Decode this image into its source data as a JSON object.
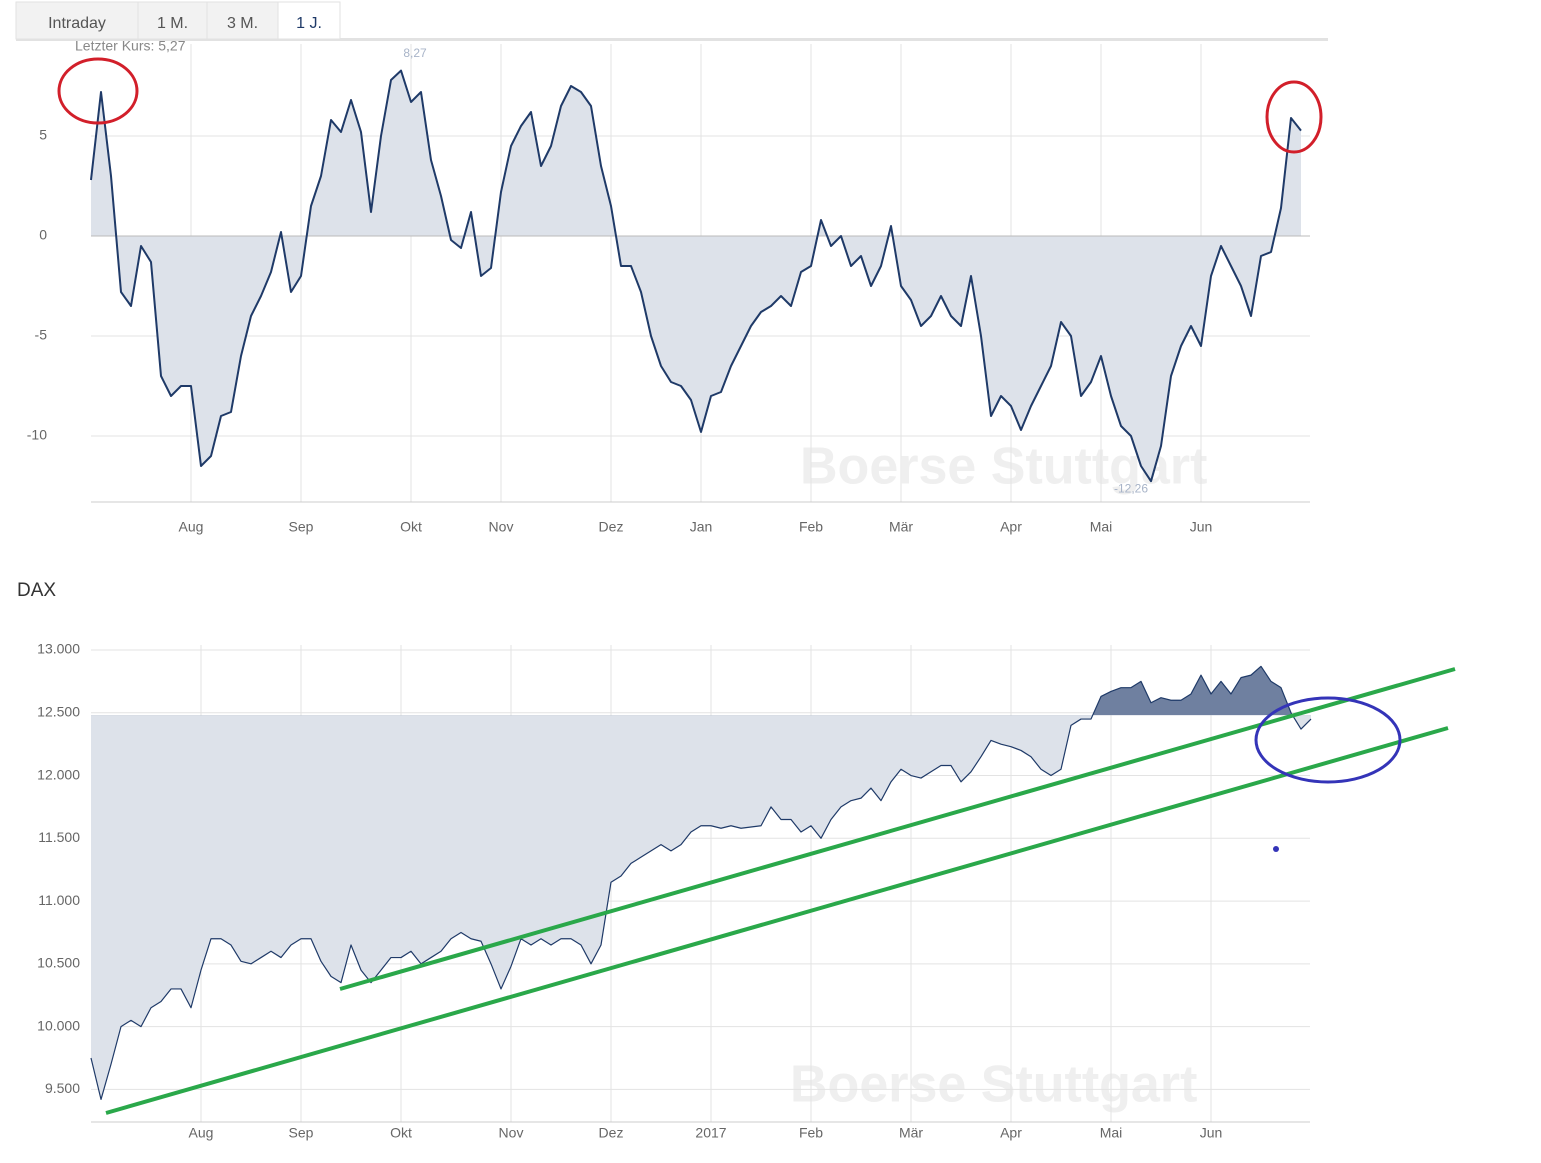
{
  "tabs": [
    "Intraday",
    "1 M.",
    "3 M.",
    "1 J."
  ],
  "active_tab": 3,
  "chart_data": [
    {
      "type": "area",
      "subtitle": "Letzter Kurs: 5,27",
      "watermark": "Boerse Stuttgart",
      "annotations": [
        "8,27",
        "-12,26"
      ],
      "categories": [
        null,
        null,
        null,
        null,
        null,
        null,
        null,
        null,
        null,
        null,
        "Aug",
        null,
        null,
        null,
        null,
        null,
        null,
        null,
        null,
        null,
        null,
        "Sep",
        null,
        null,
        null,
        null,
        null,
        null,
        null,
        null,
        null,
        null,
        "Okt",
        null,
        null,
        null,
        null,
        null,
        null,
        null,
        null,
        "Nov",
        null,
        null,
        null,
        null,
        null,
        null,
        null,
        null,
        null,
        null,
        "Dez",
        null,
        null,
        null,
        null,
        null,
        null,
        null,
        null,
        "Jan",
        null,
        null,
        null,
        null,
        null,
        null,
        null,
        null,
        null,
        null,
        "Feb",
        null,
        null,
        null,
        null,
        null,
        null,
        null,
        null,
        "Mär",
        null,
        null,
        null,
        null,
        null,
        null,
        null,
        null,
        null,
        null,
        "Apr",
        null,
        null,
        null,
        null,
        null,
        null,
        null,
        null,
        "Mai",
        null,
        null,
        null,
        null,
        null,
        null,
        null,
        null,
        null,
        "Jun",
        null,
        null,
        null,
        null,
        null,
        null,
        null,
        null,
        null,
        null
      ],
      "values": [
        2.8,
        7.2,
        3,
        -2.8,
        -3.5,
        -0.5,
        -1.3,
        -7,
        -8,
        -7.5,
        -7.5,
        -11.5,
        -11,
        -9,
        -8.8,
        -6,
        -4,
        -3,
        -1.8,
        0.2,
        -2.8,
        -2,
        1.5,
        3,
        5.8,
        5.2,
        6.8,
        5.2,
        1.2,
        5,
        7.8,
        8.27,
        6.7,
        7.2,
        3.8,
        2,
        -0.2,
        -0.6,
        1.2,
        -2,
        -1.6,
        2.2,
        4.5,
        5.5,
        6.2,
        3.5,
        4.5,
        6.5,
        7.5,
        7.2,
        6.5,
        3.5,
        1.5,
        -1.5,
        -1.5,
        -2.8,
        -5,
        -6.5,
        -7.3,
        -7.5,
        -8.2,
        -9.8,
        -8,
        -7.8,
        -6.5,
        -5.5,
        -4.5,
        -3.8,
        -3.5,
        -3,
        -3.5,
        -1.8,
        -1.5,
        0.8,
        -0.5,
        0,
        -1.5,
        -1,
        -2.5,
        -1.5,
        0.5,
        -2.5,
        -3.2,
        -4.5,
        -4,
        -3,
        -4,
        -4.5,
        -2,
        -5,
        -9,
        -8,
        -8.5,
        -9.7,
        -8.5,
        -7.5,
        -6.5,
        -4.3,
        -5,
        -8,
        -7.3,
        -6,
        -8,
        -9.5,
        -10,
        -11.5,
        -12.26,
        -10.5,
        -7,
        -5.5,
        -4.5,
        -5.5,
        -2,
        -0.5,
        -1.5,
        -2.5,
        -4,
        -1,
        -0.8,
        1.4,
        5.9,
        5.27
      ],
      "color": "#1f3a68",
      "fill": "#dde2ea",
      "baseline": 0,
      "ylim": [
        -13.3,
        9.6
      ],
      "yticks": [
        5,
        0,
        -5,
        -10
      ],
      "grid": true
    },
    {
      "type": "area",
      "title": "DAX",
      "watermark": "Boerse Stuttgart",
      "categories": [
        null,
        null,
        null,
        null,
        null,
        null,
        null,
        null,
        null,
        null,
        null,
        "Aug",
        null,
        null,
        null,
        null,
        null,
        null,
        null,
        null,
        null,
        "Sep",
        null,
        null,
        null,
        null,
        null,
        null,
        null,
        null,
        null,
        "Okt",
        null,
        null,
        null,
        null,
        null,
        null,
        null,
        null,
        null,
        null,
        "Nov",
        null,
        null,
        null,
        null,
        null,
        null,
        null,
        null,
        null,
        "Dez",
        null,
        null,
        null,
        null,
        null,
        null,
        null,
        null,
        null,
        "2017",
        null,
        null,
        null,
        null,
        null,
        null,
        null,
        null,
        null,
        "Feb",
        null,
        null,
        null,
        null,
        null,
        null,
        null,
        null,
        null,
        "Mär",
        null,
        null,
        null,
        null,
        null,
        null,
        null,
        null,
        null,
        "Apr",
        null,
        null,
        null,
        null,
        null,
        null,
        null,
        null,
        null,
        "Mai",
        null,
        null,
        null,
        null,
        null,
        null,
        null,
        null,
        null,
        "Jun",
        null,
        null,
        null,
        null,
        null,
        null,
        null,
        null,
        null,
        null
      ],
      "values": [
        9750,
        9420,
        9700,
        10000,
        10050,
        10000,
        10150,
        10200,
        10300,
        10300,
        10150,
        10450,
        10700,
        10700,
        10650,
        10520,
        10500,
        10550,
        10600,
        10550,
        10650,
        10700,
        10700,
        10520,
        10400,
        10350,
        10650,
        10450,
        10350,
        10450,
        10550,
        10550,
        10600,
        10500,
        10550,
        10600,
        10700,
        10750,
        10700,
        10680,
        10500,
        10300,
        10480,
        10700,
        10650,
        10700,
        10650,
        10700,
        10700,
        10650,
        10500,
        10650,
        11150,
        11200,
        11300,
        11350,
        11400,
        11450,
        11400,
        11450,
        11550,
        11600,
        11600,
        11580,
        11600,
        11580,
        11590,
        11600,
        11750,
        11650,
        11650,
        11550,
        11600,
        11500,
        11650,
        11750,
        11800,
        11820,
        11900,
        11800,
        11950,
        12050,
        12000,
        11980,
        12030,
        12080,
        12080,
        11950,
        12030,
        12150,
        12280,
        12250,
        12230,
        12200,
        12150,
        12050,
        12000,
        12050,
        12400,
        12450,
        12450,
        12630,
        12670,
        12700,
        12700,
        12750,
        12580,
        12620,
        12600,
        12600,
        12650,
        12800,
        12650,
        12750,
        12650,
        12780,
        12800,
        12870,
        12750,
        12700,
        12500,
        12370,
        12450
      ],
      "color": "#1f3a68",
      "fill": "#dde2ea",
      "fill_above": "#6f80a0",
      "baseline": 12480,
      "ylim": [
        9240,
        13040
      ],
      "yticks": [
        {
          "value": 13000,
          "label": "13.000"
        },
        {
          "value": 12500,
          "label": "12.500"
        },
        {
          "value": 12000,
          "label": "12.000"
        },
        {
          "value": 11500,
          "label": "11.500"
        },
        {
          "value": 11000,
          "label": "11.000"
        },
        {
          "value": 10500,
          "label": "10.500"
        },
        {
          "value": 10000,
          "label": "10.000"
        },
        {
          "value": 9500,
          "label": "9.500"
        }
      ],
      "grid": true
    }
  ]
}
